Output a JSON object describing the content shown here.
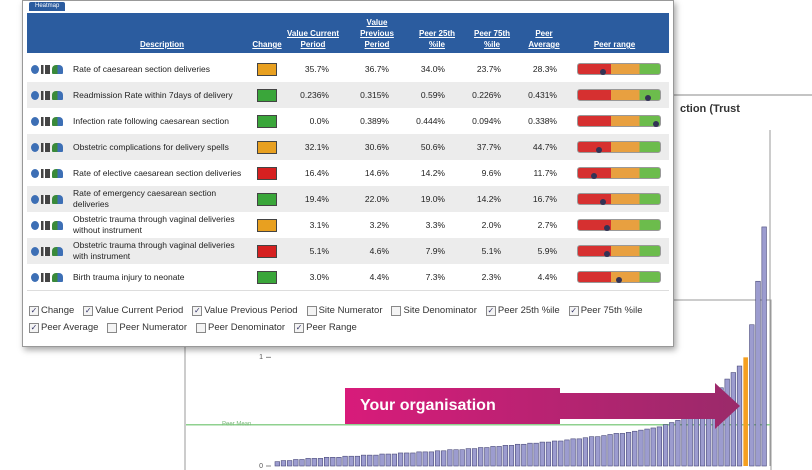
{
  "background_chart": {
    "type": "bar",
    "title": "ction (Trust",
    "annotation": "Your organisation",
    "peer_mean": {
      "label": "Peer Mean",
      "value": 0.38,
      "color": "#8fd18f"
    },
    "ylim": [
      0,
      3
    ],
    "yticks": [
      0,
      1
    ],
    "color": "#9c9ccf",
    "highlight": {
      "index": 76,
      "color": "#f5a020"
    },
    "values": [
      0.04,
      0.05,
      0.05,
      0.06,
      0.06,
      0.07,
      0.07,
      0.07,
      0.08,
      0.08,
      0.08,
      0.09,
      0.09,
      0.09,
      0.1,
      0.1,
      0.1,
      0.11,
      0.11,
      0.11,
      0.12,
      0.12,
      0.12,
      0.13,
      0.13,
      0.13,
      0.14,
      0.14,
      0.15,
      0.15,
      0.15,
      0.16,
      0.16,
      0.17,
      0.17,
      0.18,
      0.18,
      0.19,
      0.19,
      0.2,
      0.2,
      0.21,
      0.21,
      0.22,
      0.22,
      0.23,
      0.23,
      0.24,
      0.25,
      0.25,
      0.26,
      0.27,
      0.27,
      0.28,
      0.29,
      0.3,
      0.3,
      0.31,
      0.32,
      0.33,
      0.34,
      0.35,
      0.36,
      0.38,
      0.4,
      0.42,
      0.45,
      0.48,
      0.52,
      0.56,
      0.6,
      0.66,
      0.72,
      0.8,
      0.86,
      0.92,
      1.0,
      1.3,
      1.7,
      2.2
    ]
  },
  "heatmap": {
    "tab": "Heatmap",
    "headers": [
      "Description",
      "Change",
      "Value Current Period",
      "Value Previous Period",
      "Peer 25th %ile",
      "Peer 75th %ile",
      "Peer Average",
      "Peer range"
    ],
    "rows": [
      {
        "description": "Rate of caesarean section deliveries",
        "change_color": "#e8a020",
        "cells": [
          "35.7%",
          "36.7%",
          "34.0%",
          "23.7%",
          "28.3%"
        ],
        "peer_range_marker": 0.3
      },
      {
        "description": "Readmission Rate within 7days of delivery",
        "change_color": "#3aa63a",
        "cells": [
          "0.236%",
          "0.315%",
          "0.59%",
          "0.226%",
          "0.431%"
        ],
        "peer_range_marker": 0.85
      },
      {
        "description": "Infection rate following caesarean section",
        "change_color": "#3aa63a",
        "cells": [
          "0.0%",
          "0.389%",
          "0.444%",
          "0.094%",
          "0.338%"
        ],
        "peer_range_marker": 0.95
      },
      {
        "description": "Obstetric complications for delivery spells",
        "change_color": "#e8a020",
        "cells": [
          "32.1%",
          "30.6%",
          "50.6%",
          "37.7%",
          "44.7%"
        ],
        "peer_range_marker": 0.25
      },
      {
        "description": "Rate of elective caesarean section deliveries",
        "change_color": "#d62020",
        "cells": [
          "16.4%",
          "14.6%",
          "14.2%",
          "9.6%",
          "11.7%"
        ],
        "peer_range_marker": 0.2
      },
      {
        "description": "Rate of emergency caesarean section deliveries",
        "change_color": "#3aa63a",
        "cells": [
          "19.4%",
          "22.0%",
          "19.0%",
          "14.2%",
          "16.7%"
        ],
        "peer_range_marker": 0.3
      },
      {
        "description": "Obstetric trauma through vaginal deliveries without instrument",
        "change_color": "#e8a020",
        "cells": [
          "3.1%",
          "3.2%",
          "3.3%",
          "2.0%",
          "2.7%"
        ],
        "peer_range_marker": 0.35
      },
      {
        "description": "Obstetric trauma through vaginal deliveries with instrument",
        "change_color": "#d62020",
        "cells": [
          "5.1%",
          "4.6%",
          "7.9%",
          "5.1%",
          "5.9%"
        ],
        "peer_range_marker": 0.35
      },
      {
        "description": "Birth trauma injury to neonate",
        "change_color": "#3aa63a",
        "cells": [
          "3.0%",
          "4.4%",
          "7.3%",
          "2.3%",
          "4.4%"
        ],
        "peer_range_marker": 0.5
      }
    ],
    "options": [
      [
        {
          "label": "Change",
          "checked": true
        },
        {
          "label": "Value Current Period",
          "checked": true
        },
        {
          "label": "Value Previous Period",
          "checked": true
        },
        {
          "label": "Site Numerator",
          "checked": false
        },
        {
          "label": "Site Denominator",
          "checked": false
        },
        {
          "label": "Peer 25th %ile",
          "checked": true
        },
        {
          "label": "Peer 75th %ile",
          "checked": true
        }
      ],
      [
        {
          "label": "Peer Average",
          "checked": true
        },
        {
          "label": "Peer Numerator",
          "checked": false
        },
        {
          "label": "Peer Denominator",
          "checked": false
        },
        {
          "label": "Peer Range",
          "checked": true
        }
      ]
    ]
  }
}
